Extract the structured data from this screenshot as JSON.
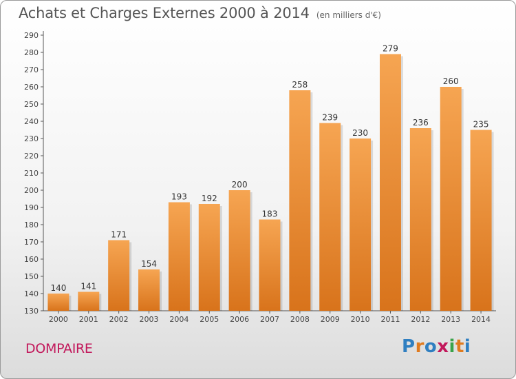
{
  "header": {
    "title": "Achats et Charges Externes 2000 à 2014",
    "unit": "(en milliers d'€)"
  },
  "footer": {
    "place": "DOMPAIRE",
    "logo": "Proxiti",
    "logo_colors": [
      "#2f7fc1",
      "#e07b1f",
      "#2f7fc1",
      "#c2185b",
      "#3aa34a",
      "#e07b1f",
      "#2f7fc1"
    ]
  },
  "chart_data": {
    "type": "bar",
    "title": "Achats et Charges Externes 2000 à 2014",
    "subtitle": "(en milliers d'€)",
    "categories": [
      "2000",
      "2001",
      "2002",
      "2003",
      "2004",
      "2005",
      "2006",
      "2007",
      "2008",
      "2009",
      "2010",
      "2011",
      "2012",
      "2013",
      "2014"
    ],
    "values": [
      140,
      141,
      171,
      154,
      193,
      192,
      200,
      183,
      258,
      239,
      230,
      279,
      236,
      260,
      235
    ],
    "ylim": [
      130,
      290
    ],
    "ytick_step": 10,
    "grid": false,
    "bar_colors": {
      "top": "#f6a552",
      "bottom": "#d8731b"
    },
    "xlabel": "",
    "ylabel": ""
  }
}
